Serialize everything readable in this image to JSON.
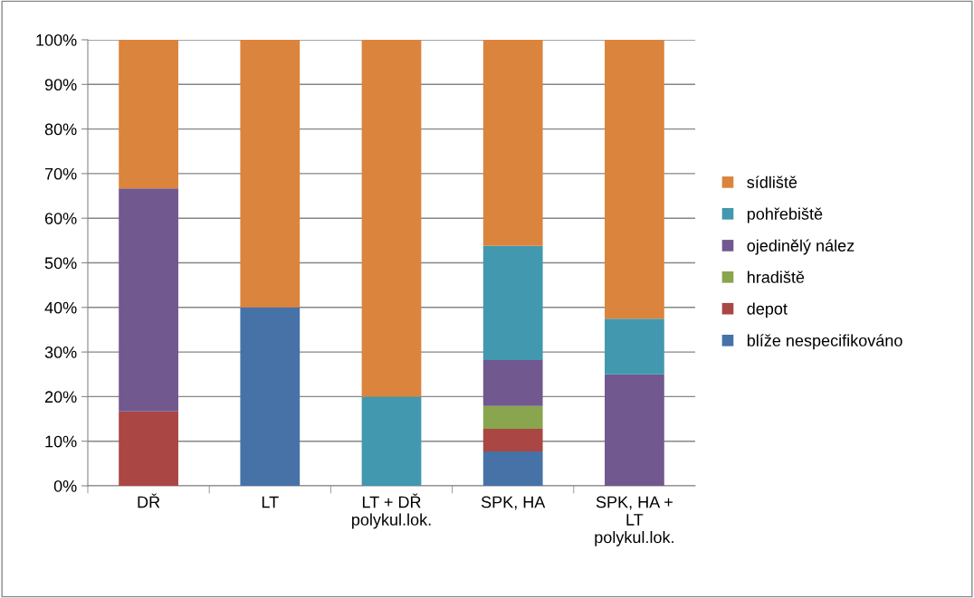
{
  "chart_data": {
    "type": "bar",
    "stacked": true,
    "categories": [
      "DŘ",
      "LT",
      "LT + DŘ\npolykul.lok.",
      "SPK, HA",
      "SPK, HA +\nLT\npolykul.lok."
    ],
    "series": [
      {
        "name": "blíže nespecifikováno",
        "color": "#4672a8",
        "values": [
          0,
          40,
          0,
          7.7,
          0
        ]
      },
      {
        "name": "depot",
        "color": "#aa4643",
        "values": [
          16.7,
          0,
          0,
          5.1,
          0
        ]
      },
      {
        "name": "hradiště",
        "color": "#89a54e",
        "values": [
          0,
          0,
          0,
          5.1,
          0
        ]
      },
      {
        "name": "ojedinělý nález",
        "color": "#71588f",
        "values": [
          50,
          0,
          0,
          10.3,
          25
        ]
      },
      {
        "name": "pohřebiště",
        "color": "#4198af",
        "values": [
          0,
          0,
          20,
          25.6,
          12.5
        ]
      },
      {
        "name": "sídliště",
        "color": "#db843d",
        "values": [
          33.3,
          60,
          80,
          46.2,
          62.5
        ]
      }
    ],
    "ylim": [
      0,
      100
    ],
    "yticks": [
      {
        "value": 0,
        "label": "0%"
      },
      {
        "value": 10,
        "label": "10%"
      },
      {
        "value": 20,
        "label": "20%"
      },
      {
        "value": 30,
        "label": "30%"
      },
      {
        "value": 40,
        "label": "40%"
      },
      {
        "value": 50,
        "label": "50%"
      },
      {
        "value": 60,
        "label": "60%"
      },
      {
        "value": 70,
        "label": "70%"
      },
      {
        "value": 80,
        "label": "80%"
      },
      {
        "value": 90,
        "label": "90%"
      },
      {
        "value": 100,
        "label": "100%"
      }
    ],
    "grid": "y",
    "legend": "right"
  }
}
